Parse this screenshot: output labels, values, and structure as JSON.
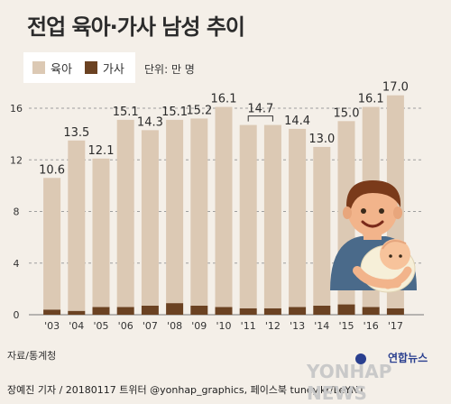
{
  "title": "전업 육아·가사 남성 추이",
  "unit": "단위: 만 명",
  "source": "자료/통계청",
  "credit": "장예진 기자 / 20180117 트위터 @yonhap_graphics, 페이스북 tuney.kr/LeYN1",
  "watermark": {
    "agency": "연합뉴스",
    "brand": "YONHAP NEWS"
  },
  "colors": {
    "childcare": "#dcc9b4",
    "housework": "#6b4222",
    "background": "#f4efe8",
    "grid": "#9e9e9e"
  },
  "chart_data": {
    "type": "bar",
    "stacked": true,
    "categories": [
      "'03",
      "'04",
      "'05",
      "'06",
      "'07",
      "'08",
      "'09",
      "'10",
      "'11",
      "'12",
      "'13",
      "'14",
      "'15",
      "'16",
      "'17"
    ],
    "series": [
      {
        "name": "육아",
        "values": [
          10.2,
          13.2,
          11.5,
          14.5,
          13.6,
          14.2,
          14.5,
          15.5,
          14.2,
          14.2,
          13.8,
          12.3,
          14.2,
          15.5,
          16.5
        ]
      },
      {
        "name": "가사",
        "values": [
          0.4,
          0.3,
          0.6,
          0.6,
          0.7,
          0.9,
          0.7,
          0.6,
          0.5,
          0.5,
          0.6,
          0.7,
          0.8,
          0.6,
          0.5
        ]
      }
    ],
    "totals": [
      "10.6",
      "13.5",
      "12.1",
      "15.1",
      "14.3",
      "15.1",
      "15.2",
      "16.1",
      "14.7",
      "14.7",
      "14.4",
      "13.0",
      "15.0",
      "16.1",
      "17.0"
    ],
    "yticks": [
      0,
      4,
      8,
      12,
      16
    ],
    "ylim": [
      0,
      17.5
    ],
    "legend_position": "top-left",
    "annotation": {
      "bracket_over": [
        "'11",
        "'12"
      ],
      "label": "14.7"
    }
  }
}
